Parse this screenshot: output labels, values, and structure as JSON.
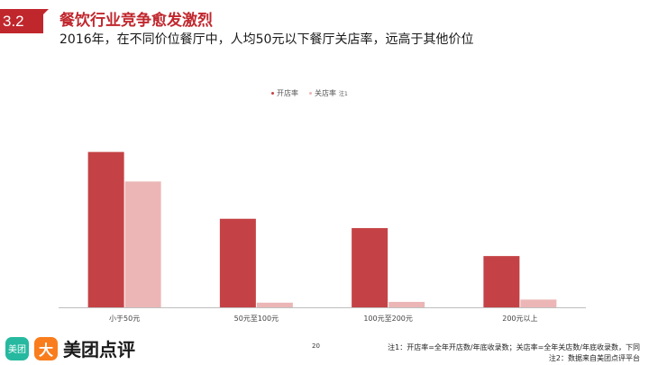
{
  "header": {
    "section_number": "3.2",
    "title": "餐饮行业竞争愈发激烈",
    "subtitle": "2016年，在不同价位餐厅中，人均50元以下餐厅关店率，远高于其他价位"
  },
  "legend": {
    "open_label": "开店率",
    "close_label": "关店率",
    "close_sup": "注1"
  },
  "chart_data": {
    "type": "bar",
    "categories": [
      "小于50元",
      "50元至100元",
      "100元至200元",
      "200元以上"
    ],
    "series": [
      {
        "name": "开店率",
        "values": [
          100,
          57,
          51,
          33
        ],
        "color": "#c44245"
      },
      {
        "name": "关店率",
        "values": [
          81,
          3,
          3.5,
          5
        ],
        "color": "#ecb6b6"
      }
    ],
    "ylim": [
      0,
      105
    ],
    "grid": false,
    "legend_position": "top"
  },
  "footer": {
    "logo_icon1_text": "美团",
    "logo_icon2_text": "大",
    "brand": "美团点评",
    "page_number": "20",
    "note1": "注1：开店率=全年开店数/年底收录数；关店率=全年关店数/年底收录数，下同",
    "note2": "注2：数据来自美团点评平台"
  },
  "colors": {
    "accent": "#c0272d",
    "open_bar": "#c44245",
    "close_bar": "#ecb6b6"
  }
}
